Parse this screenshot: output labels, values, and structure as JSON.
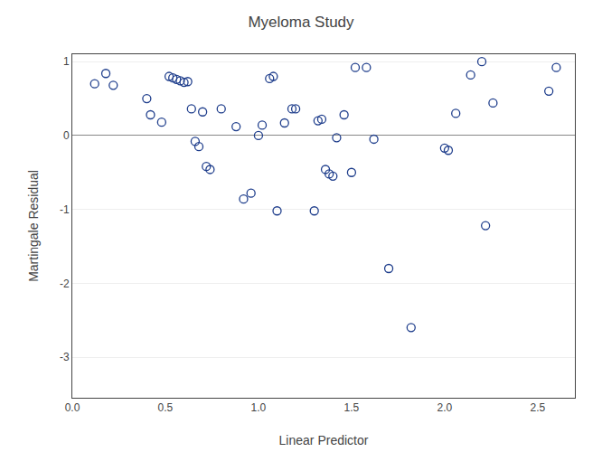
{
  "chart_data": {
    "type": "scatter",
    "title": "Myeloma Study",
    "xlabel": "Linear Predictor",
    "ylabel": "Martingale Residual",
    "color": "#1f3e8c",
    "marker": "circle-open",
    "grid": "y",
    "xlim": [
      0.0,
      2.7
    ],
    "ylim": [
      -3.55,
      1.1
    ],
    "xticks": [
      {
        "value": 0.0,
        "label": "0.0"
      },
      0.5,
      {
        "value": 1.0,
        "label": "1.0"
      },
      1.5,
      {
        "value": 2.0,
        "label": "2.0"
      },
      2.5
    ],
    "yticks": [
      1,
      0,
      -1,
      -2,
      -3
    ],
    "x": [
      0.12,
      0.18,
      0.22,
      0.4,
      0.42,
      0.48,
      0.52,
      0.54,
      0.56,
      0.58,
      0.6,
      0.62,
      0.64,
      0.66,
      0.68,
      0.7,
      0.72,
      0.74,
      0.8,
      0.88,
      0.92,
      0.96,
      1.0,
      1.02,
      1.06,
      1.08,
      1.1,
      1.14,
      1.18,
      1.2,
      1.3,
      1.32,
      1.34,
      1.36,
      1.38,
      1.4,
      1.42,
      1.46,
      1.5,
      1.52,
      1.58,
      1.62,
      1.7,
      1.82,
      2.0,
      2.02,
      2.06,
      2.14,
      2.2,
      2.22,
      2.26,
      2.56,
      2.6
    ],
    "y": [
      0.7,
      0.84,
      0.68,
      0.5,
      0.28,
      0.18,
      0.8,
      0.78,
      0.76,
      0.74,
      0.72,
      0.73,
      0.36,
      -0.08,
      -0.15,
      0.32,
      -0.42,
      -0.46,
      0.36,
      0.12,
      -0.86,
      -0.78,
      0.0,
      0.14,
      0.77,
      0.8,
      -1.02,
      0.17,
      0.36,
      0.36,
      -1.02,
      0.2,
      0.22,
      -0.46,
      -0.52,
      -0.55,
      -0.03,
      0.28,
      -0.5,
      0.92,
      0.92,
      -0.05,
      -1.8,
      -2.6,
      -0.17,
      -0.2,
      0.3,
      0.82,
      1.0,
      -1.22,
      0.44,
      0.6,
      0.92
    ]
  }
}
